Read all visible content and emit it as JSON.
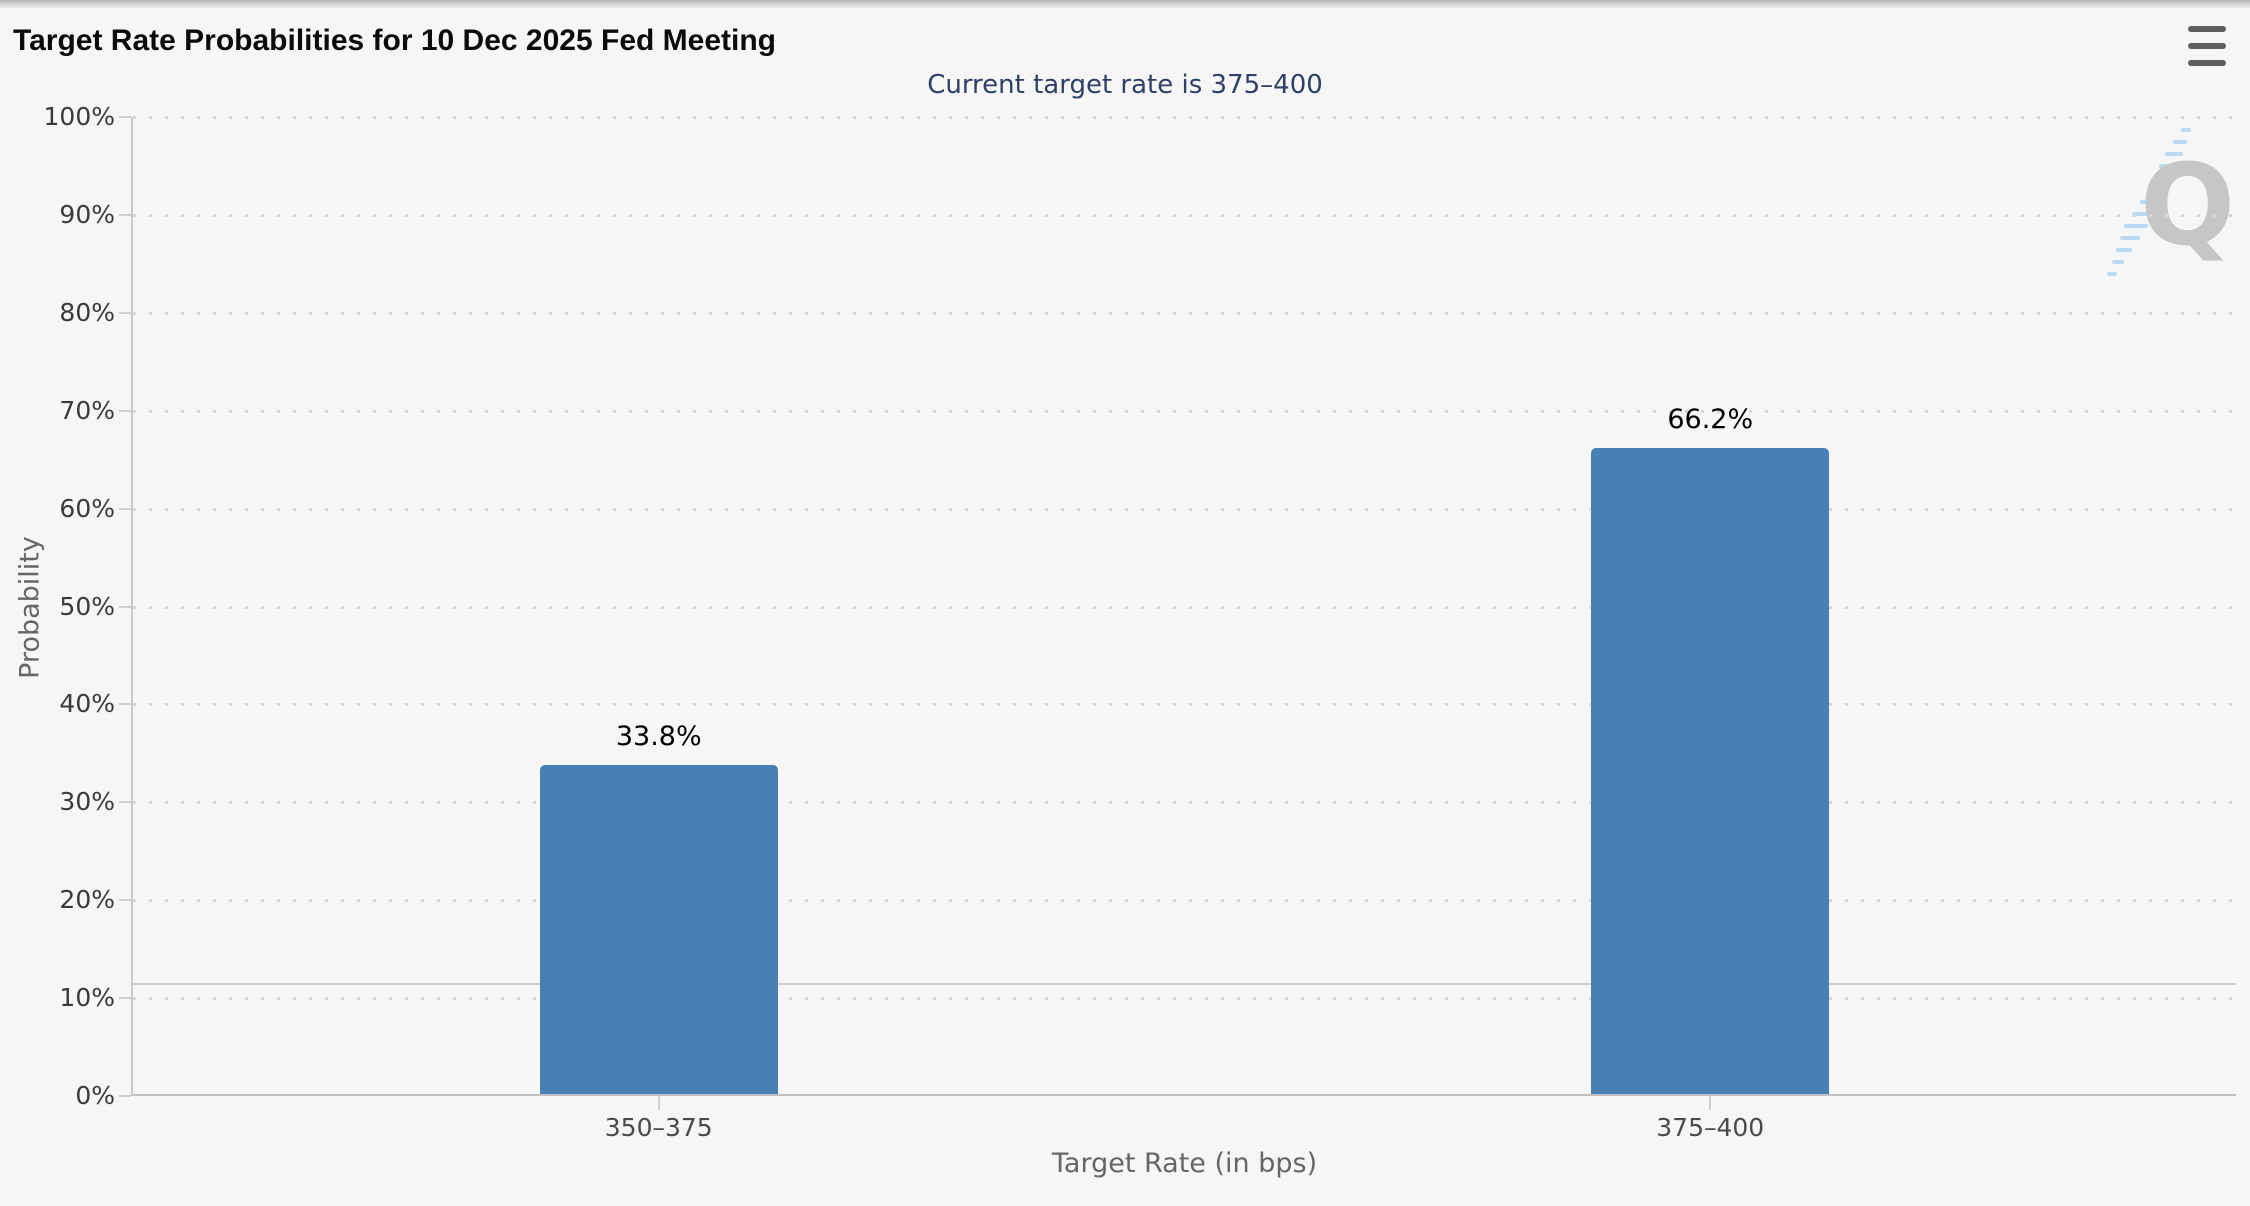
{
  "header": {
    "menu_icon": "hamburger-menu-icon"
  },
  "chart_data": {
    "type": "bar",
    "title": "Target Rate Probabilities for 10 Dec 2025 Fed Meeting",
    "subtitle": "Current target rate is 375–400",
    "categories": [
      "350–375",
      "375–400"
    ],
    "values": [
      33.8,
      66.2
    ],
    "data_labels": [
      "33.8%",
      "66.2%"
    ],
    "xlabel": "Target Rate (in bps)",
    "ylabel": "Probability",
    "ylim": [
      0,
      100
    ],
    "ytick_interval": 10,
    "ytick_labels": [
      "0%",
      "10%",
      "20%",
      "30%",
      "40%",
      "50%",
      "60%",
      "70%",
      "80%",
      "90%",
      "100%"
    ],
    "grid": "dotted-horizontal",
    "legend_position": "none",
    "reference_line_y": 11.4,
    "colors": {
      "bar": "#4680b5",
      "subtitle_text": "#2e3f68",
      "axis_label_text": "#3a3a3a",
      "axis_title_text": "#666666",
      "grid_dot": "#d8d8d8",
      "axis_line": "#c9c9c9",
      "background": "#f6f6f6",
      "watermark_letter": "#c6c6c6",
      "watermark_stripe": "#badaf4"
    },
    "watermark": {
      "letter": "Q"
    }
  }
}
